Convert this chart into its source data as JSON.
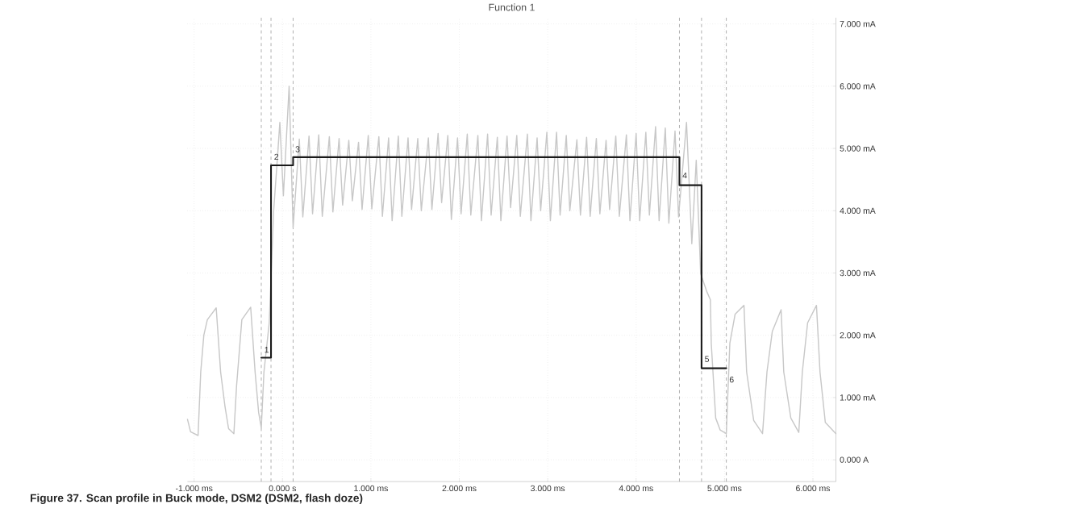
{
  "chart_data": {
    "type": "line",
    "title": "Function 1",
    "xlim": [
      -1.075,
      6.26
    ],
    "ylim": [
      -0.35,
      7.1
    ],
    "xticks": [
      {
        "value": -1,
        "label": "-1.000 ms"
      },
      {
        "value": 0,
        "label": "0.000 s"
      },
      {
        "value": 1,
        "label": "1.000 ms"
      },
      {
        "value": 2,
        "label": "2.000 ms"
      },
      {
        "value": 3,
        "label": "3.000 ms"
      },
      {
        "value": 4,
        "label": "4.000 ms"
      },
      {
        "value": 5,
        "label": "5.000 ms"
      },
      {
        "value": 6,
        "label": "6.000 ms"
      }
    ],
    "yticks": [
      {
        "value": 0,
        "label": "0.000 A"
      },
      {
        "value": 1,
        "label": "1.000 mA"
      },
      {
        "value": 2,
        "label": "2.000 mA"
      },
      {
        "value": 3,
        "label": "3.000 mA"
      },
      {
        "value": 4,
        "label": "4.000 mA"
      },
      {
        "value": 5,
        "label": "5.000 mA"
      },
      {
        "value": 6,
        "label": "6.000 mA"
      },
      {
        "value": 7,
        "label": "7.000 mA"
      }
    ],
    "grid": true,
    "marker": "none",
    "series": [
      {
        "color": "#c8c8c8",
        "x": [
          -1.075,
          -1.04,
          -0.955,
          -0.925,
          -0.89,
          -0.85,
          -0.75,
          -0.7,
          -0.65,
          -0.61,
          -0.55,
          -0.52,
          -0.46,
          -0.36,
          -0.31,
          -0.27,
          -0.24,
          -0.21,
          -0.15,
          -0.1,
          -0.05,
          -0.03,
          0.01,
          0.075,
          0.12,
          0.19,
          0.23,
          0.3,
          0.34,
          0.41,
          0.45,
          0.53,
          0.57,
          0.64,
          0.68,
          0.75,
          0.79,
          0.86,
          0.9,
          0.97,
          1.01,
          1.09,
          1.13,
          1.2,
          1.24,
          1.31,
          1.35,
          1.42,
          1.46,
          1.53,
          1.57,
          1.65,
          1.69,
          1.76,
          1.8,
          1.87,
          1.91,
          1.98,
          2.02,
          2.09,
          2.13,
          2.21,
          2.25,
          2.32,
          2.36,
          2.43,
          2.47,
          2.54,
          2.58,
          2.65,
          2.69,
          2.77,
          2.81,
          2.88,
          2.92,
          2.99,
          3.03,
          3.1,
          3.14,
          3.21,
          3.25,
          3.33,
          3.37,
          3.44,
          3.48,
          3.55,
          3.59,
          3.66,
          3.7,
          3.77,
          3.81,
          3.89,
          3.93,
          4.0,
          4.04,
          4.11,
          4.15,
          4.22,
          4.26,
          4.33,
          4.37,
          4.44,
          4.48,
          4.57,
          4.63,
          4.68,
          4.73,
          4.8,
          4.84,
          4.85,
          4.9,
          4.95,
          5.02,
          5.06,
          5.12,
          5.22,
          5.25,
          5.33,
          5.43,
          5.48,
          5.54,
          5.64,
          5.67,
          5.75,
          5.84,
          5.88,
          5.94,
          6.04,
          6.08,
          6.14,
          6.26
        ],
        "values": [
          0.65,
          0.45,
          0.39,
          1.41,
          2.0,
          2.25,
          2.44,
          1.41,
          0.85,
          0.5,
          0.42,
          1.18,
          2.25,
          2.45,
          1.41,
          0.76,
          0.51,
          1.41,
          2.2,
          4.0,
          5.0,
          5.42,
          4.24,
          6.0,
          3.73,
          5.15,
          3.9,
          5.2,
          3.95,
          5.22,
          3.91,
          5.19,
          3.98,
          5.16,
          4.09,
          5.13,
          4.16,
          5.1,
          4.02,
          5.21,
          4.03,
          5.19,
          3.91,
          5.17,
          3.84,
          5.2,
          3.91,
          5.17,
          4.02,
          5.16,
          4.0,
          5.17,
          4.02,
          5.24,
          4.13,
          5.21,
          3.86,
          5.17,
          3.95,
          5.23,
          3.93,
          5.21,
          3.84,
          5.23,
          3.93,
          5.18,
          3.84,
          5.2,
          4.05,
          5.21,
          3.91,
          5.23,
          3.84,
          5.17,
          4.0,
          5.26,
          3.84,
          5.26,
          3.93,
          5.21,
          4.0,
          5.14,
          3.93,
          5.18,
          3.91,
          5.16,
          3.95,
          5.13,
          4.02,
          5.2,
          3.91,
          5.22,
          3.84,
          5.24,
          3.84,
          5.26,
          3.93,
          5.35,
          3.84,
          5.33,
          3.8,
          5.28,
          3.9,
          5.42,
          3.47,
          4.81,
          2.99,
          2.7,
          2.57,
          1.87,
          0.67,
          0.48,
          0.42,
          1.87,
          2.34,
          2.48,
          1.41,
          0.63,
          0.42,
          1.41,
          2.06,
          2.41,
          1.41,
          0.67,
          0.44,
          1.41,
          2.2,
          2.48,
          1.41,
          0.6,
          0.42
        ]
      },
      {
        "type": "step",
        "color": "#1a1a1a",
        "x": [
          -0.24,
          -0.13,
          0.12,
          4.49,
          4.74,
          5.02
        ],
        "values": [
          1.64,
          4.73,
          4.86,
          4.41,
          1.47,
          1.47
        ]
      }
    ],
    "ref_lines": [
      {
        "axis": "x",
        "value": -0.24,
        "color": "#9a9a9a",
        "line_style": "dashed"
      },
      {
        "axis": "x",
        "value": -0.13,
        "color": "#9a9a9a",
        "line_style": "dashed"
      },
      {
        "axis": "x",
        "value": 0.12,
        "color": "#9a9a9a",
        "line_style": "dashed"
      },
      {
        "axis": "x",
        "value": 4.49,
        "color": "#9a9a9a",
        "line_style": "dashed"
      },
      {
        "axis": "x",
        "value": 4.74,
        "color": "#9a9a9a",
        "line_style": "dashed"
      },
      {
        "axis": "x",
        "value": 5.02,
        "color": "#9a9a9a",
        "line_style": "dashed"
      }
    ],
    "annotations": [
      {
        "text": "1",
        "x": -0.22,
        "y": 1.7
      },
      {
        "text": "2",
        "x": -0.11,
        "y": 4.8
      },
      {
        "text": "3",
        "x": 0.13,
        "y": 4.92
      },
      {
        "text": "4",
        "x": 4.51,
        "y": 4.5
      },
      {
        "text": "5",
        "x": 4.76,
        "y": 1.55
      },
      {
        "text": "6",
        "x": 5.04,
        "y": 1.22
      },
      "**Figure 37.  Scan profile in Buck mode, DSM2 (DSM2, flash doze)**"
    ]
  }
}
